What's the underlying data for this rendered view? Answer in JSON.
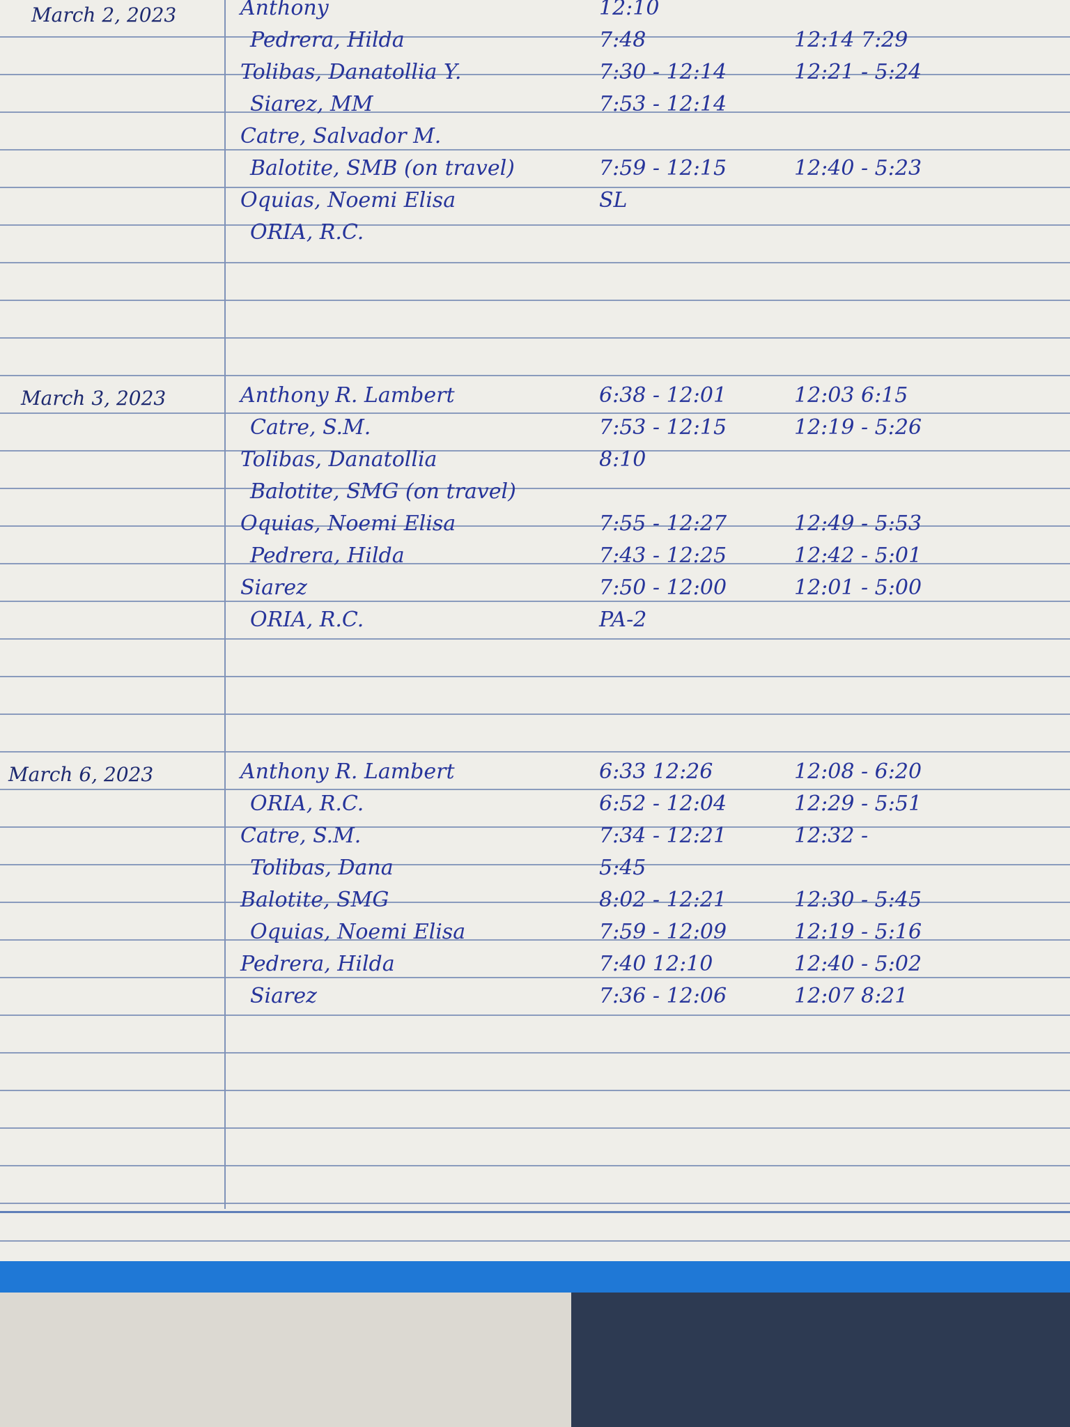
{
  "sections": [
    {
      "date": "March 2, 2023",
      "entries": [
        {
          "name": "Anthony",
          "am": "12:10"
        },
        {
          "name": "Pedrera, Hilda",
          "am": "7:48",
          "pm": "12:14 7:29"
        },
        {
          "name": "Tolibas, Danatollia Y.",
          "am": "7:30 - 12:14",
          "pm": "12:21 - 5:24"
        },
        {
          "name": "Siarez, MM",
          "am": "7:53 - 12:14"
        },
        {
          "name": "Catre, Salvador M."
        },
        {
          "name": "Balotite, SMB (on travel)",
          "am": "7:59 - 12:15",
          "pm": "12:40 - 5:23"
        },
        {
          "name": "Oquias, Noemi Elisa",
          "am": "SL"
        },
        {
          "name": "ORIA, R.C."
        }
      ]
    },
    {
      "date": "March 3, 2023",
      "entries": [
        {
          "name": "Anthony R. Lambert",
          "am": "6:38 - 12:01",
          "pm": "12:03 6:15"
        },
        {
          "name": "Catre, S.M.",
          "am": "7:53 - 12:15",
          "pm": "12:19 - 5:26"
        },
        {
          "name": "Tolibas, Danatollia",
          "am": "8:10"
        },
        {
          "name": "Balotite, SMG (on travel)"
        },
        {
          "name": "Oquias, Noemi Elisa",
          "am": "7:55 - 12:27",
          "pm": "12:49 - 5:53"
        },
        {
          "name": "Pedrera, Hilda",
          "am": "7:43 - 12:25",
          "pm": "12:42 - 5:01"
        },
        {
          "name": "Siarez",
          "am": "7:50 - 12:00",
          "pm": "12:01 - 5:00"
        },
        {
          "name": "ORIA, R.C.",
          "am": "PA-2"
        }
      ]
    },
    {
      "date": "March 6, 2023",
      "entries": [
        {
          "name": "Anthony R. Lambert",
          "am": "6:33 12:26",
          "pm": "12:08 - 6:20"
        },
        {
          "name": "ORIA, R.C.",
          "am": "6:52 - 12:04",
          "pm": "12:29 - 5:51"
        },
        {
          "name": "Catre, S.M.",
          "am": "7:34 - 12:21",
          "pm": "12:32 -"
        },
        {
          "name": "Tolibas, Dana",
          "am": "5:45"
        },
        {
          "name": "Balotite, SMG",
          "am": "8:02 - 12:21",
          "pm": "12:30 - 5:45"
        },
        {
          "name": "Oquias, Noemi Elisa",
          "am": "7:59 - 12:09",
          "pm": "12:19 - 5:16"
        },
        {
          "name": "Pedrera, Hilda",
          "am": "7:40 12:10",
          "pm": "12:40 - 5:02"
        },
        {
          "name": "Siarez",
          "am": "7:36 - 12:06",
          "pm": "12:07 8:21"
        }
      ]
    }
  ]
}
